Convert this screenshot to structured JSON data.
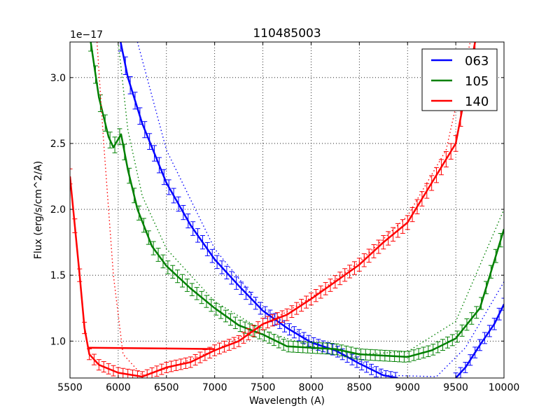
{
  "chart_data": {
    "type": "line",
    "title": "110485003",
    "xlabel": "Wavelength (A)",
    "ylabel": "Flux (erg/s/cm^2/A)",
    "y_offset_label": "1e−17",
    "xlim": [
      5500,
      10000
    ],
    "ylim": [
      0.72,
      3.27
    ],
    "xticks": [
      5500,
      6000,
      6500,
      7000,
      7500,
      8000,
      8500,
      9000,
      9500,
      10000
    ],
    "yticks": [
      1.0,
      1.5,
      2.0,
      2.5,
      3.0
    ],
    "ytick_labels": [
      "1.0",
      "1.5",
      "2.0",
      "2.5",
      "3.0"
    ],
    "grid": true,
    "legend_position": "upper right",
    "series": [
      {
        "name": "063",
        "color": "#0000ff",
        "x": [
          6025,
          6100,
          6250,
          6500,
          6750,
          7000,
          7250,
          7500,
          7750,
          8000,
          8250,
          8500,
          8750,
          8900
        ],
        "values": [
          3.27,
          3.0,
          2.65,
          2.2,
          1.88,
          1.62,
          1.42,
          1.23,
          1.1,
          0.99,
          0.93,
          0.83,
          0.74,
          0.72
        ],
        "x2": [
          9500,
          9600,
          9750,
          9900,
          10000
        ],
        "values2": [
          0.72,
          0.8,
          0.97,
          1.13,
          1.28
        ],
        "model_x": [
          6200,
          6500,
          7000,
          7500,
          8000,
          8500,
          8800,
          9300,
          9600,
          10000
        ],
        "model_values": [
          3.27,
          2.45,
          1.7,
          1.25,
          1.0,
          0.85,
          0.74,
          0.73,
          0.95,
          1.45
        ]
      },
      {
        "name": "105",
        "color": "#008000",
        "x": [
          5715,
          5800,
          5900,
          5950,
          6030,
          6100,
          6200,
          6350,
          6500,
          6750,
          7000,
          7250,
          7500,
          7750,
          8000,
          8250,
          8500,
          8750,
          9000,
          9250,
          9500,
          9750,
          10000
        ],
        "values": [
          3.27,
          2.85,
          2.55,
          2.47,
          2.57,
          2.3,
          2.0,
          1.72,
          1.57,
          1.4,
          1.25,
          1.12,
          1.05,
          0.96,
          0.95,
          0.94,
          0.9,
          0.89,
          0.88,
          0.93,
          1.02,
          1.25,
          1.85
        ],
        "model_x": [
          6000,
          6100,
          6250,
          6500,
          7000,
          7500,
          8000,
          8500,
          9000,
          9500,
          10000
        ],
        "model_values": [
          3.27,
          2.6,
          2.1,
          1.7,
          1.3,
          1.08,
          0.96,
          0.9,
          0.92,
          1.15,
          2.0
        ]
      },
      {
        "name": "140",
        "color": "#ff0000",
        "x": [
          5500,
          5600,
          5650,
          5700,
          5800,
          6000,
          6250,
          6500,
          6750,
          7000,
          7250,
          7500,
          7750,
          8000,
          8250,
          8500,
          8750,
          9000,
          9250,
          9500,
          9700
        ],
        "values": [
          2.25,
          1.5,
          1.1,
          0.9,
          0.82,
          0.76,
          0.73,
          0.8,
          0.84,
          0.93,
          1.0,
          1.13,
          1.2,
          1.32,
          1.45,
          1.58,
          1.75,
          1.9,
          2.2,
          2.5,
          3.27
        ],
        "connector": {
          "x": [
            5680,
            7000
          ],
          "values": [
            0.95,
            0.94
          ]
        },
        "model_x": [
          5780,
          5850,
          5950,
          6050,
          6250,
          6500,
          7000,
          7500,
          8000,
          8500,
          9000,
          9400,
          9650
        ],
        "model_values": [
          3.27,
          2.5,
          1.5,
          0.9,
          0.74,
          0.79,
          0.93,
          1.12,
          1.33,
          1.6,
          1.95,
          2.45,
          3.27
        ]
      }
    ]
  }
}
